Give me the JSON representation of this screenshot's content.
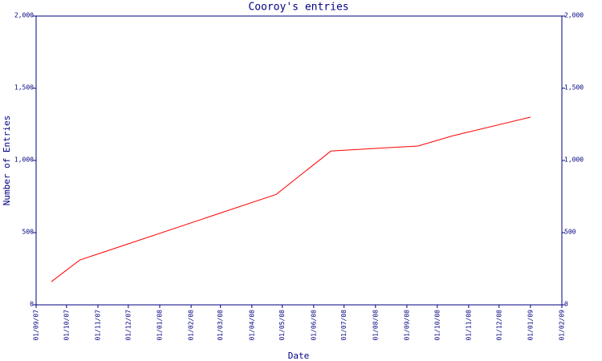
{
  "chart_data": {
    "type": "line",
    "title": "Cooroy's entries",
    "xlabel": "Date",
    "ylabel": "Number of Entries",
    "x": [
      "2007-09-16",
      "2007-10-14",
      "2008-04-25",
      "2008-06-18",
      "2008-09-12",
      "2008-10-16",
      "2009-01-01"
    ],
    "values": [
      160,
      310,
      765,
      1065,
      1100,
      1170,
      1300
    ],
    "color": "#ff0000",
    "xlim": [
      "2007-09-01",
      "2009-02-01"
    ],
    "xticks": [
      {
        "value": "2007-09-01",
        "label": "01/09/07"
      },
      {
        "value": "2007-10-01",
        "label": "01/10/07"
      },
      {
        "value": "2007-11-01",
        "label": "01/11/07"
      },
      {
        "value": "2007-12-01",
        "label": "01/12/07"
      },
      {
        "value": "2008-01-01",
        "label": "01/01/08"
      },
      {
        "value": "2008-02-01",
        "label": "01/02/08"
      },
      {
        "value": "2008-03-01",
        "label": "01/03/08"
      },
      {
        "value": "2008-04-01",
        "label": "01/04/08"
      },
      {
        "value": "2008-05-01",
        "label": "01/05/08"
      },
      {
        "value": "2008-06-01",
        "label": "01/06/08"
      },
      {
        "value": "2008-07-01",
        "label": "01/07/08"
      },
      {
        "value": "2008-08-01",
        "label": "01/08/08"
      },
      {
        "value": "2008-09-01",
        "label": "01/09/08"
      },
      {
        "value": "2008-10-01",
        "label": "01/10/08"
      },
      {
        "value": "2008-11-01",
        "label": "01/11/08"
      },
      {
        "value": "2008-12-01",
        "label": "01/12/08"
      },
      {
        "value": "2009-01-01",
        "label": "01/01/09"
      },
      {
        "value": "2009-02-01",
        "label": "01/02/09"
      }
    ],
    "ylim": [
      0,
      2000
    ],
    "yticks": [
      0,
      500,
      {
        "value": 1000,
        "label": "1,000"
      },
      {
        "value": 1500,
        "label": "1,500"
      },
      {
        "value": 2000,
        "label": "2,000"
      }
    ],
    "axis_color": "#000080"
  }
}
